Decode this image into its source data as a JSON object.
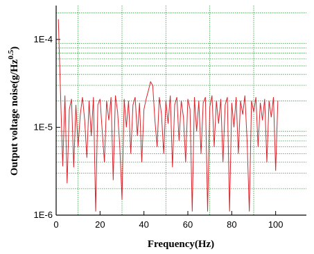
{
  "chart_data": {
    "type": "line",
    "x_label": "Frequency(Hz)",
    "y_label": {
      "text": "Output voltage noise(g/Hz",
      "sup": "0.5",
      "close": ")"
    },
    "log_y": true,
    "grid": true,
    "xlim": [
      0,
      114
    ],
    "xticks": [
      0,
      20,
      40,
      60,
      80,
      100
    ],
    "xgrid": [
      10,
      30,
      50,
      70,
      90
    ],
    "ylim": [
      1e-06,
      0.000243
    ],
    "yticks": [
      {
        "value": 1e-06,
        "label": "1E-6"
      },
      {
        "value": 1e-05,
        "label": "1E-5"
      },
      {
        "value": 0.0001,
        "label": "1E-4"
      }
    ],
    "ygrid": [
      2e-06,
      3e-06,
      4e-06,
      5e-06,
      6e-06,
      7e-06,
      8e-06,
      9e-06,
      2e-05,
      3e-05,
      4e-05,
      5e-05,
      6e-05,
      7e-05,
      8e-05,
      9e-05,
      0.0002
    ],
    "series": [
      {
        "color": "#d9232a",
        "x": [
          1,
          2,
          3,
          4,
          5,
          6,
          7,
          8,
          9,
          10,
          11,
          12,
          13,
          14,
          15,
          16,
          17,
          18,
          19,
          20,
          21,
          22,
          23,
          24,
          25,
          26,
          27,
          28,
          29,
          30,
          31,
          32,
          33,
          34,
          35,
          36,
          37,
          38,
          39,
          40,
          41,
          42,
          43,
          44,
          45,
          46,
          47,
          48,
          49,
          50,
          51,
          52,
          53,
          54,
          55,
          56,
          57,
          58,
          59,
          60,
          61,
          62,
          63,
          64,
          65,
          66,
          67,
          68,
          69,
          70,
          71,
          72,
          73,
          74,
          75,
          76,
          77,
          78,
          79,
          80,
          81,
          82,
          83,
          84,
          85,
          86,
          87,
          88,
          89,
          90,
          91,
          92,
          93,
          94,
          95,
          96,
          97,
          98,
          99,
          100,
          101
        ],
        "values": [
          0.00017,
          2.4e-05,
          3.6e-06,
          2.3e-05,
          2.3e-06,
          1.6e-05,
          2.1e-05,
          3.5e-06,
          1.8e-05,
          6e-06,
          1.4e-05,
          2.2e-05,
          1.2e-05,
          4.5e-06,
          2e-05,
          8e-06,
          2.2e-05,
          1.1e-06,
          1.8e-05,
          2.1e-05,
          9e-06,
          4e-06,
          2e-05,
          1.2e-05,
          2.2e-05,
          2.5e-06,
          2.3e-05,
          1.5e-05,
          6e-06,
          1.5e-06,
          2.1e-05,
          1e-05,
          2e-05,
          5e-06,
          1.8e-05,
          2.2e-05,
          8e-06,
          1.9e-05,
          4e-06,
          1.6e-05,
          2.1e-05,
          2.6e-05,
          3.3e-05,
          3e-05,
          1.2e-05,
          6e-06,
          2.2e-05,
          1.4e-05,
          5e-06,
          2e-05,
          1.1e-05,
          2.3e-05,
          3.5e-06,
          1.8e-05,
          2.2e-05,
          7e-06,
          2e-05,
          1.3e-05,
          4e-06,
          2.1e-05,
          1.6e-05,
          1.1e-06,
          2.2e-05,
          9e-06,
          2e-05,
          5e-06,
          1.9e-05,
          2.2e-05,
          1.1e-06,
          1.7e-05,
          2.3e-05,
          6e-06,
          2e-05,
          1.1e-05,
          2.1e-05,
          4e-06,
          1.8e-05,
          2.2e-05,
          1.1e-06,
          1.9e-05,
          1e-05,
          2.2e-05,
          5e-06,
          2e-05,
          1.4e-05,
          2.3e-05,
          7e-06,
          1.1e-06,
          2e-05,
          1.5e-05,
          2.2e-05,
          6e-06,
          1.9e-05,
          1.2e-05,
          2.1e-05,
          4e-06,
          2e-05,
          1.3e-05,
          2.2e-05,
          3.2e-06,
          2e-05
        ]
      }
    ]
  }
}
